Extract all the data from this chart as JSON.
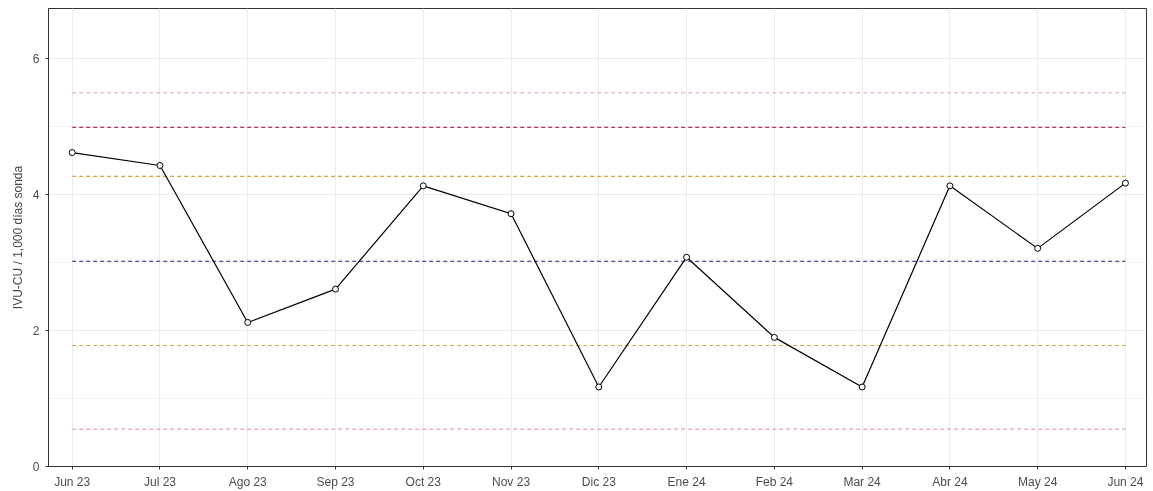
{
  "chart_data": {
    "type": "line",
    "ylabel": "IVU-CU / 1,000 días sonda",
    "categories": [
      "Jun 23",
      "Jul 23",
      "Ago 23",
      "Sep 23",
      "Oct 23",
      "Nov 23",
      "Dic 23",
      "Ene 24",
      "Feb 24",
      "Mar 24",
      "Abr 24",
      "May 24",
      "Jun 24"
    ],
    "series": [
      {
        "color": "#000000",
        "values": [
          4.62,
          4.43,
          2.12,
          2.61,
          4.13,
          3.72,
          1.17,
          3.08,
          1.9,
          1.17,
          4.13,
          3.21,
          4.17
        ]
      }
    ],
    "ylim": [
      0,
      6.74
    ],
    "yticks": [
      0,
      2,
      4,
      6
    ],
    "grid": true,
    "marker": "circle",
    "line_style": "solid",
    "ref_lines": [
      {
        "axis": "y",
        "value": 5.5,
        "color": "#e8a0b4",
        "line_style": "dashed"
      },
      {
        "axis": "y",
        "value": 4.99,
        "color": "#c03050",
        "line_style": "dashed"
      },
      {
        "axis": "y",
        "value": 4.27,
        "color": "#d8a040",
        "line_style": "dashed"
      },
      {
        "axis": "y",
        "value": 3.02,
        "color": "#20207a",
        "line_style": "dashed"
      },
      {
        "axis": "y",
        "value": 1.78,
        "color": "#d8a040",
        "line_style": "dashed"
      },
      {
        "axis": "y",
        "value": 0.55,
        "color": "#e8a0b4",
        "line_style": "dashed"
      }
    ]
  }
}
